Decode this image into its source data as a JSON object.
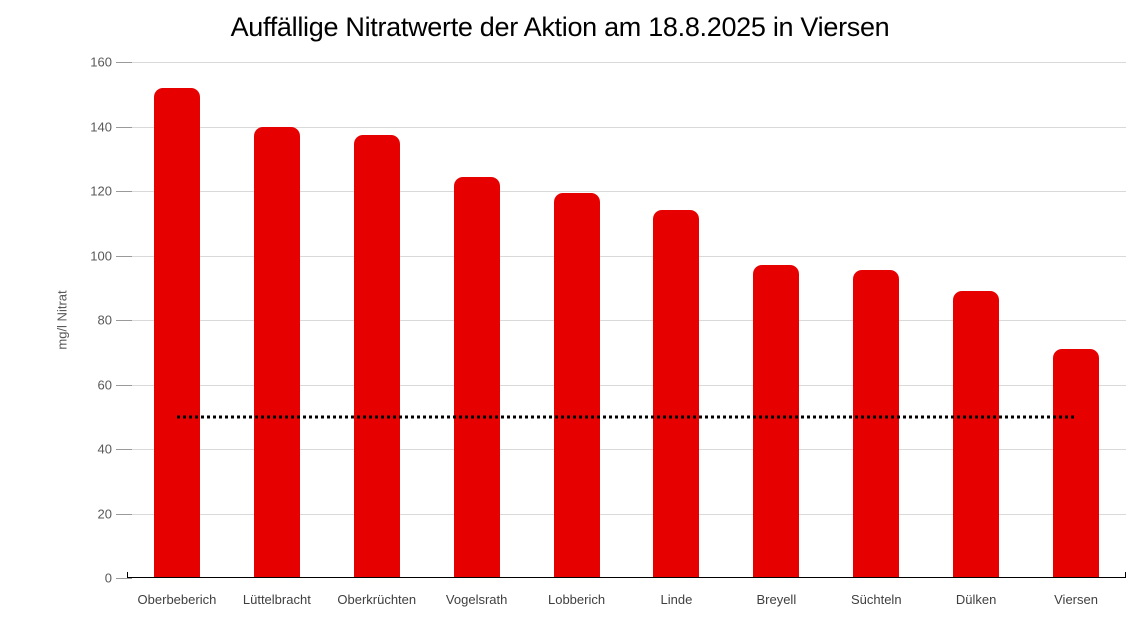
{
  "chart_data": {
    "type": "bar",
    "title": "Auffällige Nitratwerte der Aktion am 18.8.2025 in Viersen",
    "xlabel": "",
    "ylabel": "mg/l Nitrat",
    "ylim": [
      0,
      160
    ],
    "ytick_step": 20,
    "grid": true,
    "legend": "none",
    "bar_color": "#e60000",
    "grid_color": "#d9d9d9",
    "axis_line_color": "#000000",
    "tick_label_color": "#595959",
    "category_label_color": "#404040",
    "categories": [
      "Oberbeberich",
      "Lüttelbracht",
      "Oberkrüchten",
      "Vogelsrath",
      "Lobberich",
      "Linde",
      "Breyell",
      "Süchteln",
      "Dülken",
      "Viersen"
    ],
    "values": [
      152,
      140,
      137.5,
      124.5,
      119.5,
      114,
      97,
      95.5,
      89,
      71
    ],
    "reference_line": {
      "value": 50,
      "style": "dotted",
      "color": "#000000"
    }
  }
}
